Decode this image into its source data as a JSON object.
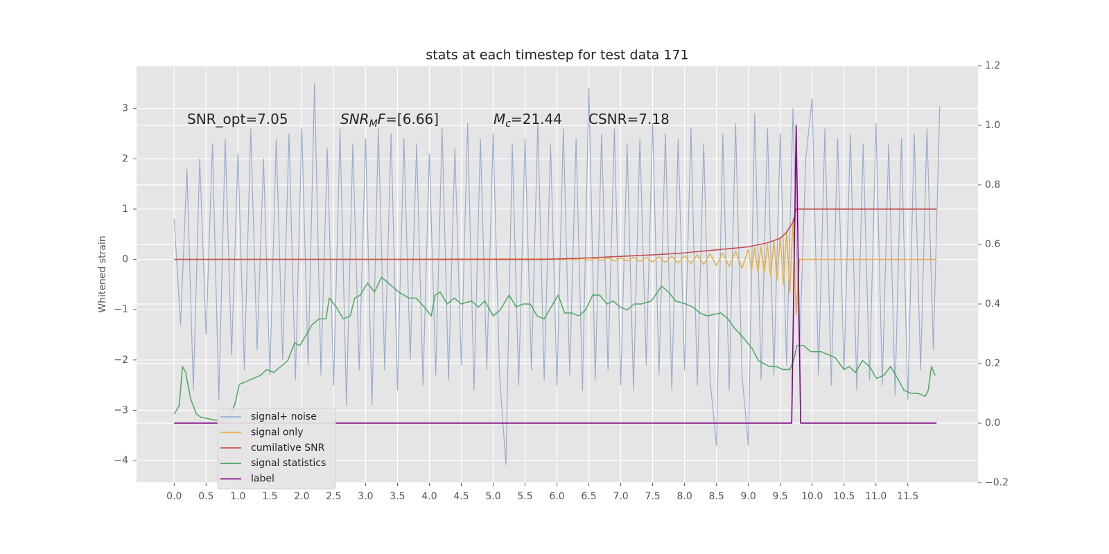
{
  "chart_data": {
    "type": "line",
    "title": "stats at each timestep for test data 171",
    "ylabel": "Whitened strain",
    "xlim": [
      -0.59,
      12.6
    ],
    "ylim": [
      -4.44,
      3.85
    ],
    "y2lim": [
      -0.2,
      1.2
    ],
    "xticks": [
      {
        "value": 0,
        "label": "0.0"
      },
      0.5,
      {
        "value": 1,
        "label": "1.0"
      },
      1.5,
      {
        "value": 2,
        "label": "2.0"
      },
      2.5,
      {
        "value": 3,
        "label": "3.0"
      },
      3.5,
      {
        "value": 4,
        "label": "4.0"
      },
      4.5,
      {
        "value": 5,
        "label": "5.0"
      },
      5.5,
      {
        "value": 6,
        "label": "6.0"
      },
      6.5,
      {
        "value": 7,
        "label": "7.0"
      },
      7.5,
      {
        "value": 8,
        "label": "8.0"
      },
      8.5,
      {
        "value": 9,
        "label": "9.0"
      },
      9.5,
      {
        "value": 10,
        "label": "10.0"
      },
      10.5,
      {
        "value": 11,
        "label": "11.0"
      },
      11.5
    ],
    "yticks": [
      {
        "value": -4,
        "label": "−4"
      },
      {
        "value": -3,
        "label": "−3"
      },
      {
        "value": -2,
        "label": "−2"
      },
      {
        "value": -1,
        "label": "−1"
      },
      0,
      1,
      2,
      3
    ],
    "y2ticks": [
      {
        "value": -0.2,
        "label": "−0.2"
      },
      {
        "value": 0,
        "label": "0.0"
      },
      0.2,
      0.4,
      0.6,
      0.8,
      {
        "value": 1,
        "label": "1.0"
      },
      1.2
    ],
    "grid": true,
    "legend": "lower left",
    "annotations": [
      [
        {
          "text": "SNR_opt=7.05"
        }
      ],
      [
        {
          "text": "SNR",
          "italic": true
        },
        {
          "text": "M",
          "italic": true,
          "sub": true
        },
        {
          "text": "F",
          "italic": true
        },
        {
          "text": "=[6.66]"
        }
      ],
      [
        {
          "text": "M",
          "italic": true
        },
        {
          "text": "c",
          "italic": true,
          "sub": true
        },
        {
          "text": "=21.44"
        }
      ],
      [
        {
          "text": "CSNR=7.18"
        }
      ]
    ],
    "series": [
      {
        "name": "signal+ noise",
        "color": "#8fa6cc",
        "x": [
          0,
          0.1,
          0.2,
          0.3,
          0.4,
          0.5,
          0.6,
          0.7,
          0.8,
          0.9,
          1,
          1.1,
          1.2,
          1.3,
          1.4,
          1.5,
          1.6,
          1.7,
          1.8,
          1.9,
          2,
          2.1,
          2.2,
          2.3,
          2.4,
          2.5,
          2.6,
          2.7,
          2.8,
          2.9,
          3,
          3.1,
          3.2,
          3.3,
          3.4,
          3.5,
          3.6,
          3.7,
          3.8,
          3.9,
          4,
          4.1,
          4.2,
          4.3,
          4.4,
          4.5,
          4.6,
          4.7,
          4.8,
          4.9,
          5,
          5.1,
          5.2,
          5.3,
          5.4,
          5.5,
          5.6,
          5.7,
          5.8,
          5.9,
          6,
          6.1,
          6.2,
          6.3,
          6.4,
          6.5,
          6.6,
          6.7,
          6.8,
          6.9,
          7,
          7.1,
          7.2,
          7.3,
          7.4,
          7.5,
          7.6,
          7.7,
          7.8,
          7.9,
          8,
          8.1,
          8.2,
          8.3,
          8.4,
          8.5,
          8.6,
          8.7,
          8.8,
          8.9,
          9,
          9.1,
          9.2,
          9.3,
          9.4,
          9.5,
          9.6,
          9.7,
          9.8,
          9.9,
          10,
          10.1,
          10.2,
          10.3,
          10.4,
          10.5,
          10.6,
          10.7,
          10.8,
          10.9,
          11,
          11.1,
          11.2,
          11.3,
          11.4,
          11.5,
          11.6,
          11.7,
          11.8,
          11.9,
          12
        ],
        "values": [
          0.8,
          -1.3,
          1.8,
          -2.6,
          2.0,
          -1.5,
          2.3,
          -2.8,
          2.4,
          -1.9,
          2.1,
          -2.2,
          2.6,
          -1.8,
          2.0,
          -2.3,
          2.4,
          -2.0,
          2.5,
          -2.4,
          2.6,
          -2.1,
          3.5,
          -2.3,
          2.2,
          -2.5,
          2.6,
          -2.9,
          2.3,
          -2.2,
          2.4,
          -2.9,
          2.6,
          -2.2,
          2.5,
          -2.6,
          2.4,
          -2.0,
          2.3,
          -2.5,
          2.1,
          -2.3,
          2.6,
          -2.4,
          2.2,
          -2.1,
          2.7,
          -2.6,
          2.4,
          -2.2,
          2.5,
          -2.3,
          -4.08,
          2.3,
          -2.5,
          2.4,
          -2.2,
          2.7,
          -2.4,
          2.3,
          -2.5,
          2.6,
          -2.3,
          2.4,
          -2.6,
          3.4,
          -2.4,
          2.5,
          -2.2,
          2.6,
          -2.5,
          2.3,
          -2.6,
          2.4,
          -2.1,
          2.7,
          -2.3,
          2.5,
          -2.6,
          2.4,
          -2.2,
          2.6,
          -2.5,
          2.3,
          -2.4,
          -3.7,
          2.5,
          -2.6,
          2.7,
          -2.3,
          -3.7,
          2.9,
          -2.4,
          2.6,
          -2.3,
          2.5,
          -2.1,
          3.0,
          -1.9,
          2.0,
          3.2,
          -2.3,
          2.6,
          -2.5,
          2.4,
          -2.2,
          2.5,
          -2.6,
          2.3,
          -2.4,
          2.7,
          -2.5,
          2.3,
          -2.7,
          2.4,
          -2.8,
          2.5,
          -2.2,
          2.6,
          -1.8,
          3.05
        ]
      },
      {
        "name": "signal only",
        "color": "#e8b04e",
        "x": [
          0,
          6,
          6.1,
          6.2,
          6.3,
          6.4,
          6.5,
          6.6,
          6.7,
          6.8,
          6.9,
          7,
          7.1,
          7.2,
          7.3,
          7.4,
          7.5,
          7.6,
          7.7,
          7.8,
          7.9,
          8,
          8.1,
          8.2,
          8.3,
          8.4,
          8.5,
          8.6,
          8.7,
          8.8,
          8.9,
          9,
          9.05,
          9.1,
          9.15,
          9.2,
          9.25,
          9.3,
          9.35,
          9.4,
          9.45,
          9.5,
          9.55,
          9.6,
          9.65,
          9.7,
          9.75,
          9.8,
          11.95
        ],
        "values": [
          0,
          0.01,
          -0.01,
          0.01,
          -0.01,
          0.02,
          -0.02,
          0.02,
          -0.02,
          0.03,
          -0.03,
          0.03,
          -0.03,
          0.04,
          -0.04,
          0.04,
          -0.05,
          0.05,
          -0.06,
          0.06,
          -0.07,
          0.07,
          -0.08,
          0.09,
          -0.1,
          0.11,
          -0.12,
          0.13,
          -0.14,
          0.16,
          -0.18,
          0.2,
          -0.21,
          0.23,
          -0.24,
          0.26,
          -0.28,
          0.3,
          -0.33,
          0.36,
          -0.4,
          0.44,
          -0.5,
          0.57,
          -0.66,
          0.8,
          -1.1,
          0,
          0
        ]
      },
      {
        "name": "cumilative SNR",
        "color": "#c44e52",
        "x": [
          0,
          5.8,
          6.5,
          7,
          7.5,
          8,
          8.5,
          9,
          9.3,
          9.5,
          9.6,
          9.7,
          9.75,
          11.95
        ],
        "values": [
          0,
          0,
          0.03,
          0.06,
          0.09,
          0.13,
          0.19,
          0.25,
          0.33,
          0.42,
          0.54,
          0.74,
          1,
          1
        ]
      },
      {
        "name": "signal statistics",
        "color": "#55a868",
        "axis": "y2",
        "x": [
          0,
          0.08,
          0.13,
          0.18,
          0.26,
          0.35,
          0.42,
          0.64,
          0.86,
          0.96,
          1.02,
          1.13,
          1.24,
          1.35,
          1.45,
          1.56,
          1.67,
          1.78,
          1.89,
          1.97,
          2.05,
          2.16,
          2.27,
          2.38,
          2.43,
          2.54,
          2.65,
          2.76,
          2.83,
          2.92,
          3.03,
          3.14,
          3.25,
          3.36,
          3.52,
          3.68,
          3.79,
          3.92,
          4.03,
          4.09,
          4.17,
          4.28,
          4.39,
          4.5,
          4.66,
          4.77,
          4.87,
          5,
          5.11,
          5.25,
          5.36,
          5.47,
          5.58,
          5.69,
          5.8,
          5.91,
          6.02,
          6.12,
          6.23,
          6.34,
          6.45,
          6.56,
          6.67,
          6.78,
          6.88,
          6.99,
          7.1,
          7.21,
          7.32,
          7.48,
          7.64,
          7.75,
          7.86,
          8.02,
          8.13,
          8.24,
          8.35,
          8.57,
          8.68,
          8.78,
          8.95,
          9.06,
          9.16,
          9.33,
          9.44,
          9.54,
          9.65,
          9.71,
          9.76,
          9.87,
          9.98,
          10.14,
          10.25,
          10.36,
          10.5,
          10.58,
          10.68,
          10.79,
          10.9,
          11.01,
          11.12,
          11.23,
          11.34,
          11.44,
          11.55,
          11.66,
          11.77,
          11.82,
          11.87,
          11.93
        ],
        "values": [
          0.03,
          0.06,
          0.19,
          0.17,
          0.08,
          0.03,
          0.02,
          0.01,
          0.01,
          0.07,
          0.13,
          0.14,
          0.15,
          0.16,
          0.18,
          0.17,
          0.19,
          0.21,
          0.27,
          0.26,
          0.29,
          0.33,
          0.35,
          0.35,
          0.42,
          0.39,
          0.35,
          0.36,
          0.42,
          0.43,
          0.47,
          0.44,
          0.49,
          0.47,
          0.44,
          0.42,
          0.42,
          0.39,
          0.36,
          0.43,
          0.44,
          0.4,
          0.42,
          0.4,
          0.41,
          0.39,
          0.41,
          0.36,
          0.38,
          0.43,
          0.39,
          0.4,
          0.4,
          0.36,
          0.35,
          0.39,
          0.43,
          0.37,
          0.37,
          0.36,
          0.38,
          0.43,
          0.43,
          0.4,
          0.41,
          0.39,
          0.38,
          0.4,
          0.4,
          0.41,
          0.46,
          0.44,
          0.41,
          0.4,
          0.39,
          0.37,
          0.36,
          0.37,
          0.35,
          0.32,
          0.28,
          0.25,
          0.21,
          0.19,
          0.19,
          0.18,
          0.18,
          0.21,
          0.26,
          0.26,
          0.24,
          0.24,
          0.23,
          0.22,
          0.18,
          0.19,
          0.17,
          0.21,
          0.19,
          0.15,
          0.16,
          0.19,
          0.15,
          0.11,
          0.1,
          0.1,
          0.09,
          0.11,
          0.19,
          0.16
        ]
      },
      {
        "name": "label",
        "color": "#800080",
        "axis": "y2",
        "x": [
          0,
          9.68,
          9.75,
          9.82,
          11.95
        ],
        "values": [
          0,
          0,
          1,
          0,
          0
        ]
      }
    ]
  }
}
